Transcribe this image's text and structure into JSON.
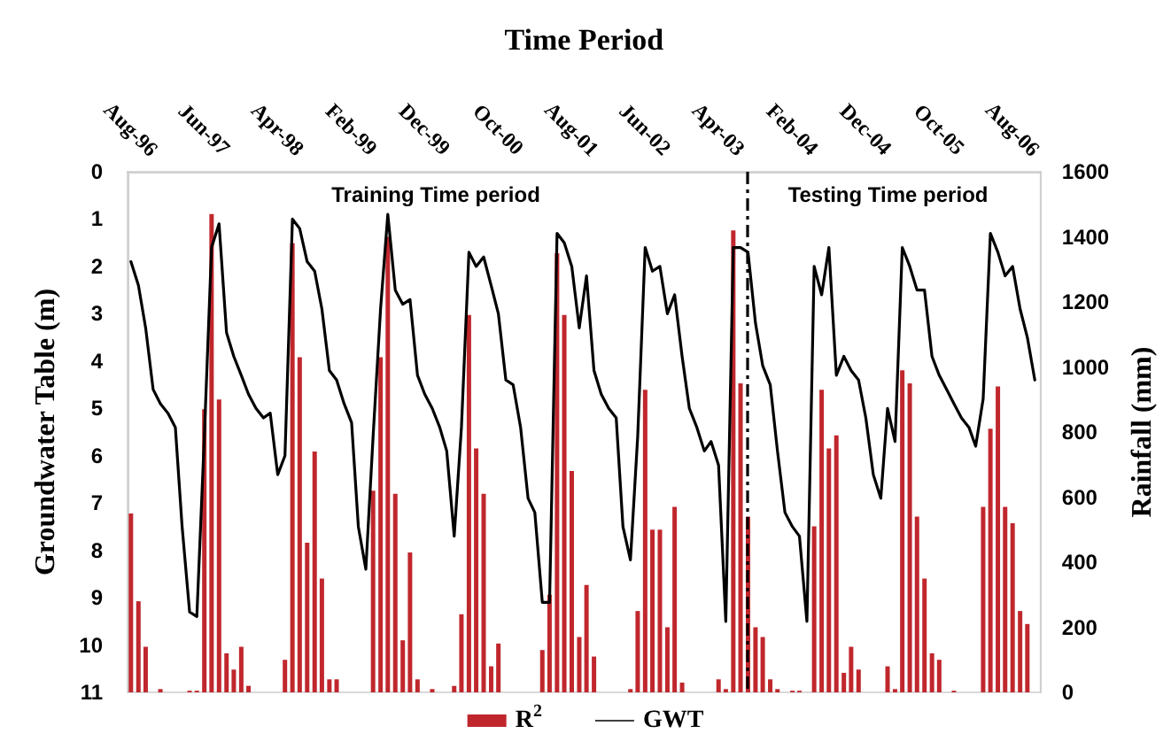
{
  "chart_data": {
    "type": "line",
    "xlabel": "Time Period",
    "ylabel": "Groundwater Table (m)",
    "y2label": "Rainfall (mm)",
    "x": [
      "1996-08",
      "1996-09",
      "1996-10",
      "1996-11",
      "1996-12",
      "1997-01",
      "1997-02",
      "1997-03",
      "1997-04",
      "1997-05",
      "1997-06",
      "1997-07",
      "1997-08",
      "1997-09",
      "1997-10",
      "1997-11",
      "1997-12",
      "1998-01",
      "1998-02",
      "1998-03",
      "1998-04",
      "1998-05",
      "1998-06",
      "1998-07",
      "1998-08",
      "1998-09",
      "1998-10",
      "1998-11",
      "1998-12",
      "1999-01",
      "1999-02",
      "1999-03",
      "1999-04",
      "1999-05",
      "1999-06",
      "1999-07",
      "1999-08",
      "1999-09",
      "1999-10",
      "1999-11",
      "1999-12",
      "2000-01",
      "2000-02",
      "2000-03",
      "2000-04",
      "2000-05",
      "2000-06",
      "2000-07",
      "2000-08",
      "2000-09",
      "2000-10",
      "2000-11",
      "2000-12",
      "2001-01",
      "2001-02",
      "2001-03",
      "2001-04",
      "2001-05",
      "2001-06",
      "2001-07",
      "2001-08",
      "2001-09",
      "2001-10",
      "2001-11",
      "2001-12",
      "2002-01",
      "2002-02",
      "2002-03",
      "2002-04",
      "2002-05",
      "2002-06",
      "2002-07",
      "2002-08",
      "2002-09",
      "2002-10",
      "2002-11",
      "2002-12",
      "2003-01",
      "2003-02",
      "2003-03",
      "2003-04",
      "2003-05",
      "2003-06",
      "2003-07",
      "2003-08",
      "2003-09",
      "2003-10",
      "2003-11",
      "2003-12",
      "2004-01",
      "2004-02",
      "2004-03",
      "2004-04",
      "2004-05",
      "2004-06",
      "2004-07",
      "2004-08",
      "2004-09",
      "2004-10",
      "2004-11",
      "2004-12",
      "2005-01",
      "2005-02",
      "2005-03",
      "2005-04",
      "2005-05",
      "2005-06",
      "2005-07",
      "2005-08",
      "2005-09",
      "2005-10",
      "2005-11",
      "2005-12",
      "2006-01",
      "2006-02",
      "2006-03",
      "2006-04",
      "2006-05",
      "2006-06",
      "2006-07",
      "2006-08",
      "2006-09",
      "2006-10",
      "2006-11"
    ],
    "series": [
      {
        "name": "R$^{2}$",
        "type": "bar",
        "axis": "y2",
        "color": "#c0272d",
        "values": [
          550,
          280,
          140,
          0,
          10,
          0,
          0,
          0,
          5,
          5,
          870,
          1470,
          900,
          120,
          70,
          140,
          20,
          0,
          0,
          0,
          0,
          100,
          1380,
          1030,
          460,
          740,
          350,
          40,
          40,
          0,
          0,
          0,
          0,
          620,
          1030,
          1400,
          610,
          160,
          430,
          40,
          0,
          10,
          0,
          0,
          20,
          240,
          1160,
          750,
          610,
          80,
          150,
          0,
          0,
          0,
          0,
          0,
          130,
          300,
          1350,
          1160,
          680,
          170,
          330,
          110,
          0,
          0,
          0,
          0,
          10,
          250,
          930,
          500,
          500,
          200,
          570,
          30,
          0,
          0,
          0,
          0,
          40,
          10,
          1420,
          950,
          540,
          200,
          170,
          40,
          10,
          0,
          5,
          5,
          0,
          510,
          930,
          750,
          790,
          60,
          140,
          70,
          0,
          0,
          0,
          80,
          10,
          990,
          950,
          540,
          350,
          120,
          100,
          0,
          5,
          0,
          0,
          0,
          570,
          810,
          940,
          570,
          520,
          250,
          210,
          0
        ]
      },
      {
        "name": "GWT",
        "color": "#000000",
        "values": [
          1.9,
          2.4,
          3.3,
          4.6,
          4.9,
          5.1,
          5.4,
          7.5,
          9.3,
          9.4,
          5.6,
          1.6,
          1.1,
          3.4,
          3.9,
          4.3,
          4.7,
          5.0,
          5.2,
          5.1,
          6.4,
          6.0,
          1.0,
          1.2,
          1.9,
          2.1,
          2.9,
          4.2,
          4.4,
          4.9,
          5.3,
          7.5,
          8.4,
          5.6,
          2.9,
          0.9,
          2.5,
          2.8,
          2.7,
          4.3,
          4.7,
          5.0,
          5.4,
          5.9,
          7.7,
          5.4,
          1.7,
          2.0,
          1.8,
          2.4,
          3.0,
          4.4,
          4.5,
          5.4,
          6.9,
          7.2,
          9.1,
          9.1,
          1.3,
          1.5,
          2.0,
          3.3,
          2.2,
          4.2,
          4.7,
          5.0,
          5.2,
          7.5,
          8.2,
          5.6,
          1.6,
          2.1,
          2.0,
          3.0,
          2.6,
          3.9,
          5.0,
          5.4,
          5.9,
          5.7,
          6.2,
          9.5,
          1.6,
          1.6,
          1.7,
          3.2,
          4.1,
          4.5,
          5.9,
          7.2,
          7.5,
          7.7,
          9.5,
          2.0,
          2.6,
          1.6,
          4.3,
          3.9,
          4.2,
          4.4,
          5.2,
          6.4,
          6.9,
          5.0,
          5.7,
          1.6,
          2.0,
          2.5,
          2.5,
          3.9,
          4.3,
          4.6,
          4.9,
          5.2,
          5.4,
          5.8,
          4.8,
          1.3,
          1.7,
          2.2,
          2.0,
          2.9,
          3.5,
          4.4
        ]
      }
    ],
    "xlim": [
      "1996-07-18",
      "2006-11-25"
    ],
    "xticks": [
      {
        "value": "1996-08",
        "label": "Aug-96"
      },
      {
        "value": "1997-06",
        "label": "Jun-97"
      },
      {
        "value": "1998-04",
        "label": "Apr-98"
      },
      {
        "value": "1999-02",
        "label": "Feb-99"
      },
      {
        "value": "1999-12",
        "label": "Dec-99"
      },
      {
        "value": "2000-10",
        "label": "Oct-00"
      },
      {
        "value": "2001-08",
        "label": "Aug-01"
      },
      {
        "value": "2002-06",
        "label": "Jun-02"
      },
      {
        "value": "2003-04",
        "label": "Apr-03"
      },
      {
        "value": "2004-02",
        "label": "Feb-04"
      },
      {
        "value": "2004-12",
        "label": "Dec-04"
      },
      {
        "value": "2005-10",
        "label": "Oct-05"
      },
      {
        "value": "2006-08",
        "label": "Aug-06"
      }
    ],
    "ylim": [
      11,
      0
    ],
    "yticks": [
      0,
      1,
      2,
      3,
      4,
      5,
      6,
      7,
      8,
      9,
      10,
      11
    ],
    "y2lim": [
      0,
      1600
    ],
    "y2ticks": [
      0,
      200,
      400,
      600,
      800,
      1000,
      1200,
      1400,
      1600
    ],
    "ref_lines": [
      {
        "axis": "x",
        "value": "2003-08",
        "color": "#000000",
        "line_style": "dashed"
      }
    ],
    "annotations": [
      "Training Time period",
      "Testing Time period"
    ],
    "marker": "none",
    "legend": "bottom"
  }
}
